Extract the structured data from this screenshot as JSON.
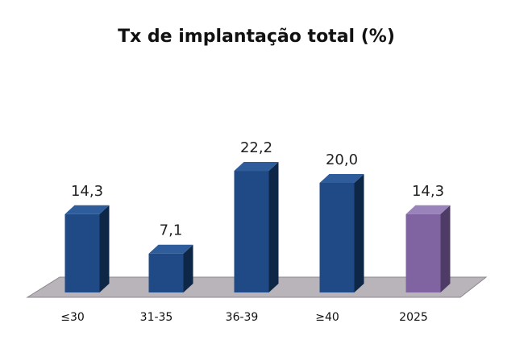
{
  "chart_data": {
    "type": "bar",
    "title": "Tx de implantação total (%)",
    "xlabel": "",
    "ylabel": "",
    "categories": [
      "≤30",
      "31-35",
      "36-39",
      "≥40",
      "2025"
    ],
    "values": [
      14.3,
      7.1,
      22.2,
      20.0,
      14.3
    ],
    "data_labels": [
      "14,3",
      "7,1",
      "22,2",
      "20,0",
      "14,3"
    ],
    "ylim": [
      0,
      25
    ],
    "grid": false,
    "legend": "none",
    "bar_3d": true,
    "colors": {
      "bar_front": [
        "#1f4a86",
        "#1f4a86",
        "#1f4a86",
        "#1f4a86",
        "#8064a2"
      ],
      "bar_side": [
        "#0f2747",
        "#0f2747",
        "#0f2747",
        "#0f2747",
        "#4e3b66"
      ],
      "bar_top": [
        "#2f5d9c",
        "#2f5d9c",
        "#2f5d9c",
        "#2f5d9c",
        "#9a82ba"
      ],
      "floor": "#b8b4ba",
      "floor_edge": "#8a868c"
    }
  }
}
